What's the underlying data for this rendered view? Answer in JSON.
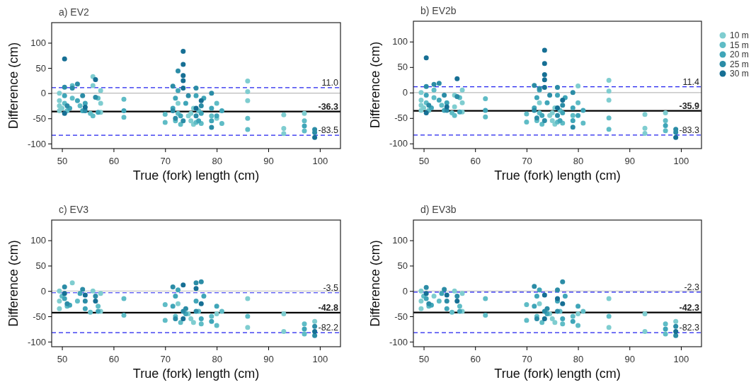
{
  "chart_data": [
    {
      "type": "scatter",
      "title": "a) EV2",
      "xlabel": "True (fork) length (cm)",
      "ylabel": "Difference (cm)",
      "xlim": [
        48,
        104
      ],
      "ylim": [
        -110,
        140
      ],
      "xticks": [
        50,
        60,
        70,
        80,
        90,
        100
      ],
      "yticks": [
        -100,
        -50,
        0,
        50,
        100
      ],
      "marker": "circle",
      "legend": false,
      "grid": false,
      "ref_lines": [
        {
          "axis": "y",
          "value": 0,
          "color": "#bbbbbb",
          "line_style": "solid"
        },
        {
          "axis": "y",
          "value": 11.0,
          "label": "11.0",
          "color": "#2020ee",
          "line_style": "dashed"
        },
        {
          "axis": "y",
          "value": -36.3,
          "label": "-36.3",
          "color": "#000000",
          "line_style": "solid"
        },
        {
          "axis": "y",
          "value": -83.5,
          "label": "-83.5",
          "color": "#2020ee",
          "line_style": "dashed"
        }
      ],
      "series": [
        {
          "color": "#7fcdd0",
          "x": [
            49.5,
            49.5,
            49.5,
            49.5,
            50,
            56,
            56,
            57.5,
            57.5,
            57.5,
            72.5,
            74.5,
            75,
            75,
            75.5,
            75.5,
            80,
            86,
            86,
            86,
            93,
            93,
            93,
            97
          ],
          "values": [
            0,
            -15,
            -25,
            -35,
            -30,
            33,
            15,
            5,
            -20,
            -38,
            -20,
            -45,
            -40,
            -55,
            -30,
            -62,
            -50,
            24,
            3,
            -15,
            -43,
            -70,
            -80,
            -40
          ]
        },
        {
          "color": "#5fbcc6",
          "x": [
            50.5,
            51,
            52,
            52,
            53.5,
            55.5,
            56,
            57,
            62,
            62,
            70,
            70,
            72,
            72.5,
            73,
            76,
            76.5,
            77,
            79,
            80,
            81,
            86,
            86,
            97,
            97
          ],
          "values": [
            -20,
            -35,
            15,
            -10,
            -25,
            -40,
            -45,
            -10,
            -12,
            -48,
            -42,
            -58,
            -55,
            -40,
            -62,
            -58,
            -35,
            -60,
            -45,
            -20,
            -60,
            -50,
            -72,
            -55,
            -75
          ]
        },
        {
          "color": "#3fa5b8",
          "x": [
            50.5,
            51.5,
            53,
            54,
            54.5,
            57,
            62,
            71.5,
            72,
            72.5,
            73,
            74,
            76,
            76.5,
            77,
            77.5,
            79,
            79,
            80,
            81,
            97
          ],
          "values": [
            -5,
            -30,
            -15,
            -35,
            -20,
            -38,
            -35,
            -30,
            -10,
            5,
            -45,
            -20,
            -5,
            -55,
            -40,
            -10,
            -30,
            -55,
            -45,
            -35,
            -65
          ]
        },
        {
          "color": "#2b8ca6",
          "x": [
            50.5,
            51,
            52,
            53,
            54,
            54.5,
            56.5,
            71.5,
            71.5,
            72,
            72.5,
            73.5,
            74.5,
            76,
            76,
            77,
            79,
            79,
            99,
            99
          ],
          "values": [
            12,
            -25,
            10,
            18,
            -5,
            -35,
            -8,
            14,
            -35,
            -50,
            44,
            -55,
            -5,
            10,
            -45,
            -25,
            0,
            -68,
            -72,
            -78
          ]
        },
        {
          "color": "#166f94",
          "x": [
            50.5,
            50.5,
            54.5,
            56.5,
            73.5,
            73.5,
            73.5,
            73.5,
            73.5,
            76,
            77,
            99
          ],
          "values": [
            68,
            -40,
            -28,
            27,
            83,
            57,
            35,
            25,
            10,
            -30,
            -15,
            -88
          ]
        }
      ]
    },
    {
      "type": "scatter",
      "title": "b) EV2b",
      "xlabel": "True (fork) length (cm)",
      "ylabel": "Difference (cm)",
      "xlim": [
        48,
        104
      ],
      "ylim": [
        -110,
        140
      ],
      "xticks": [
        50,
        60,
        70,
        80,
        90,
        100
      ],
      "yticks": [
        -100,
        -50,
        0,
        50,
        100
      ],
      "marker": "circle",
      "legend": "right",
      "grid": false,
      "ref_lines": [
        {
          "axis": "y",
          "value": 0,
          "color": "#bbbbbb",
          "line_style": "solid"
        },
        {
          "axis": "y",
          "value": 11.4,
          "label": "11.4",
          "color": "#2020ee",
          "line_style": "dashed"
        },
        {
          "axis": "y",
          "value": -35.9,
          "label": "-35.9",
          "color": "#000000",
          "line_style": "solid"
        },
        {
          "axis": "y",
          "value": -83.3,
          "label": "-83.3",
          "color": "#2020ee",
          "line_style": "dashed"
        }
      ],
      "series": [
        {
          "name": "10 m",
          "color": "#7fcdd0",
          "x": [
            49.5,
            49.5,
            49.5,
            49.5,
            50,
            56,
            56,
            57.5,
            57.5,
            57.5,
            72.5,
            74.5,
            75,
            75,
            75.5,
            75.5,
            80,
            86,
            86,
            86,
            93,
            93,
            93,
            97
          ],
          "values": [
            0,
            -15,
            -25,
            -35,
            -30,
            -28,
            -5,
            5,
            -20,
            -38,
            -20,
            -45,
            -40,
            -55,
            -30,
            -62,
            13,
            24,
            3,
            -15,
            -43,
            -70,
            -80,
            -40
          ]
        },
        {
          "name": "15 m",
          "color": "#5fbcc6",
          "x": [
            50.5,
            51,
            52,
            52,
            53.5,
            55.5,
            56,
            57,
            62,
            62,
            70,
            70,
            72,
            72.5,
            73,
            76,
            76.5,
            77,
            79,
            80,
            81,
            86,
            86,
            97,
            97
          ],
          "values": [
            -20,
            -35,
            5,
            -10,
            -25,
            -40,
            -45,
            -10,
            -12,
            -48,
            -42,
            -58,
            -55,
            -40,
            -62,
            -58,
            -35,
            -60,
            -45,
            -20,
            -60,
            -50,
            -72,
            -55,
            -75
          ]
        },
        {
          "name": "20 m",
          "color": "#3fa5b8",
          "x": [
            50.5,
            51.5,
            53,
            54,
            54.5,
            57,
            62,
            71.5,
            72,
            72.5,
            73,
            74,
            76,
            76.5,
            77,
            77.5,
            79,
            79,
            80,
            81,
            97
          ],
          "values": [
            -5,
            -30,
            -15,
            -35,
            -20,
            -38,
            -35,
            -30,
            -10,
            5,
            -45,
            -20,
            -5,
            -55,
            -40,
            -10,
            -30,
            -55,
            -45,
            -35,
            -65
          ]
        },
        {
          "name": "25 m",
          "color": "#2b8ca6",
          "x": [
            50.5,
            51,
            52,
            53,
            54,
            54.5,
            56.5,
            71.5,
            71.5,
            72,
            72.5,
            73.5,
            74.5,
            76,
            76,
            77,
            79,
            79,
            99,
            99
          ],
          "values": [
            12,
            -25,
            16,
            18,
            -5,
            -35,
            -8,
            14,
            -35,
            -50,
            8,
            -55,
            -5,
            10,
            -45,
            -25,
            0,
            -68,
            -72,
            -78
          ]
        },
        {
          "name": "30 m",
          "color": "#166f94",
          "x": [
            50.5,
            50.5,
            54.5,
            56.5,
            73.5,
            73.5,
            73.5,
            73.5,
            73.5,
            76,
            77,
            99
          ],
          "values": [
            68,
            -40,
            -28,
            27,
            83,
            57,
            35,
            25,
            10,
            -30,
            -15,
            -88
          ]
        }
      ]
    },
    {
      "type": "scatter",
      "title": "c) EV3",
      "xlabel": "True (fork) length (cm)",
      "ylabel": "Difference (cm)",
      "xlim": [
        48,
        104
      ],
      "ylim": [
        -110,
        140
      ],
      "xticks": [
        50,
        60,
        70,
        80,
        90,
        100
      ],
      "yticks": [
        -100,
        -50,
        0,
        50,
        100
      ],
      "marker": "circle",
      "legend": false,
      "grid": false,
      "ref_lines": [
        {
          "axis": "y",
          "value": 0,
          "color": "#bbbbbb",
          "line_style": "solid"
        },
        {
          "axis": "y",
          "value": -3.5,
          "label": "-3.5",
          "color": "#2020ee",
          "line_style": "dashed"
        },
        {
          "axis": "y",
          "value": -42.8,
          "label": "-42.8",
          "color": "#000000",
          "line_style": "solid"
        },
        {
          "axis": "y",
          "value": -82.2,
          "label": "-82.2",
          "color": "#2020ee",
          "line_style": "dashed"
        }
      ],
      "series": [
        {
          "color": "#7fcdd0",
          "x": [
            49.5,
            49.5,
            49.5,
            52,
            56,
            57.5,
            57.5,
            72.5,
            74.5,
            75,
            75.5,
            80,
            86,
            86,
            93,
            93,
            99
          ],
          "values": [
            0,
            -20,
            -35,
            16,
            0,
            -5,
            -40,
            -25,
            -45,
            -55,
            -62,
            -45,
            -15,
            -72,
            -45,
            -80,
            -60
          ]
        },
        {
          "color": "#5fbcc6",
          "x": [
            50,
            51,
            53,
            55.5,
            57,
            62,
            62,
            70,
            70,
            72,
            73,
            76.5,
            77,
            79,
            80,
            81,
            86,
            97,
            97
          ],
          "values": [
            -10,
            -30,
            -20,
            -42,
            -30,
            -15,
            -48,
            -27,
            -58,
            -50,
            -62,
            -40,
            -65,
            -50,
            -68,
            -40,
            -50,
            -65,
            -85
          ]
        },
        {
          "color": "#3fa5b8",
          "x": [
            50.5,
            51.5,
            53.5,
            54.5,
            57,
            71.5,
            72,
            72.5,
            74,
            76,
            77,
            77.5,
            79,
            80,
            97
          ],
          "values": [
            -15,
            -28,
            -5,
            -35,
            -40,
            -30,
            -10,
            2,
            -45,
            -20,
            -55,
            -10,
            -60,
            -30,
            -75
          ]
        },
        {
          "color": "#2b8ca6",
          "x": [
            50.5,
            51,
            54,
            54.5,
            56.5,
            71.5,
            72,
            73.5,
            74,
            76,
            76,
            77,
            99,
            99
          ],
          "values": [
            8,
            -25,
            3,
            -20,
            -10,
            8,
            -55,
            -40,
            -35,
            16,
            -40,
            18,
            -70,
            -88
          ]
        },
        {
          "color": "#166f94",
          "x": [
            50.5,
            54.5,
            56.5,
            73.5,
            73.5,
            76,
            77,
            99
          ],
          "values": [
            -5,
            -8,
            -20,
            12,
            -55,
            5,
            -25,
            -80
          ]
        }
      ]
    },
    {
      "type": "scatter",
      "title": "d) EV3b",
      "xlabel": "True (fork) length (cm)",
      "ylabel": "Difference (cm)",
      "xlim": [
        48,
        104
      ],
      "ylim": [
        -110,
        140
      ],
      "xticks": [
        50,
        60,
        70,
        80,
        90,
        100
      ],
      "yticks": [
        -100,
        -50,
        0,
        50,
        100
      ],
      "marker": "circle",
      "legend": false,
      "grid": false,
      "ref_lines": [
        {
          "axis": "y",
          "value": 0,
          "color": "#bbbbbb",
          "line_style": "solid"
        },
        {
          "axis": "y",
          "value": -2.3,
          "label": "-2.3",
          "color": "#2020ee",
          "line_style": "dashed"
        },
        {
          "axis": "y",
          "value": -42.3,
          "label": "-42.3",
          "color": "#000000",
          "line_style": "solid"
        },
        {
          "axis": "y",
          "value": -82.3,
          "label": "-82.3",
          "color": "#2020ee",
          "line_style": "dashed"
        }
      ],
      "series": [
        {
          "color": "#7fcdd0",
          "x": [
            49.5,
            49.5,
            49.5,
            52,
            56,
            57.5,
            57.5,
            72.5,
            74.5,
            75,
            75.5,
            80,
            86,
            86,
            93,
            93,
            99
          ],
          "values": [
            0,
            -20,
            -35,
            -10,
            0,
            -5,
            -40,
            -25,
            -45,
            -55,
            -62,
            -45,
            -15,
            -72,
            -45,
            -80,
            -60
          ]
        },
        {
          "color": "#5fbcc6",
          "x": [
            50,
            51,
            53,
            55.5,
            57,
            62,
            62,
            70,
            70,
            72,
            73,
            76.5,
            77,
            79,
            80,
            81,
            86,
            97,
            97
          ],
          "values": [
            -10,
            -30,
            -20,
            -42,
            -30,
            -15,
            -48,
            -27,
            -58,
            -50,
            -62,
            -40,
            -65,
            -50,
            -68,
            -40,
            -50,
            -65,
            -85
          ]
        },
        {
          "color": "#3fa5b8",
          "x": [
            50.5,
            51.5,
            53.5,
            54.5,
            57,
            71.5,
            72,
            72.5,
            74,
            76,
            77,
            77.5,
            79,
            80,
            97
          ],
          "values": [
            -15,
            -28,
            -5,
            -35,
            -40,
            -30,
            -10,
            2,
            -45,
            -20,
            -55,
            -10,
            -60,
            -30,
            -75
          ]
        },
        {
          "color": "#2b8ca6",
          "x": [
            50.5,
            51,
            54,
            54.5,
            56.5,
            71.5,
            72,
            73.5,
            74,
            76,
            76,
            77,
            99,
            99
          ],
          "values": [
            7,
            -25,
            3,
            -20,
            -10,
            9,
            -55,
            -40,
            -35,
            2,
            -40,
            18,
            -70,
            -88
          ]
        },
        {
          "color": "#166f94",
          "x": [
            50.5,
            54.5,
            56.5,
            73.5,
            73.5,
            76,
            77,
            99
          ],
          "values": [
            -5,
            -8,
            -20,
            -8,
            -55,
            -15,
            -25,
            -80
          ]
        }
      ]
    }
  ]
}
